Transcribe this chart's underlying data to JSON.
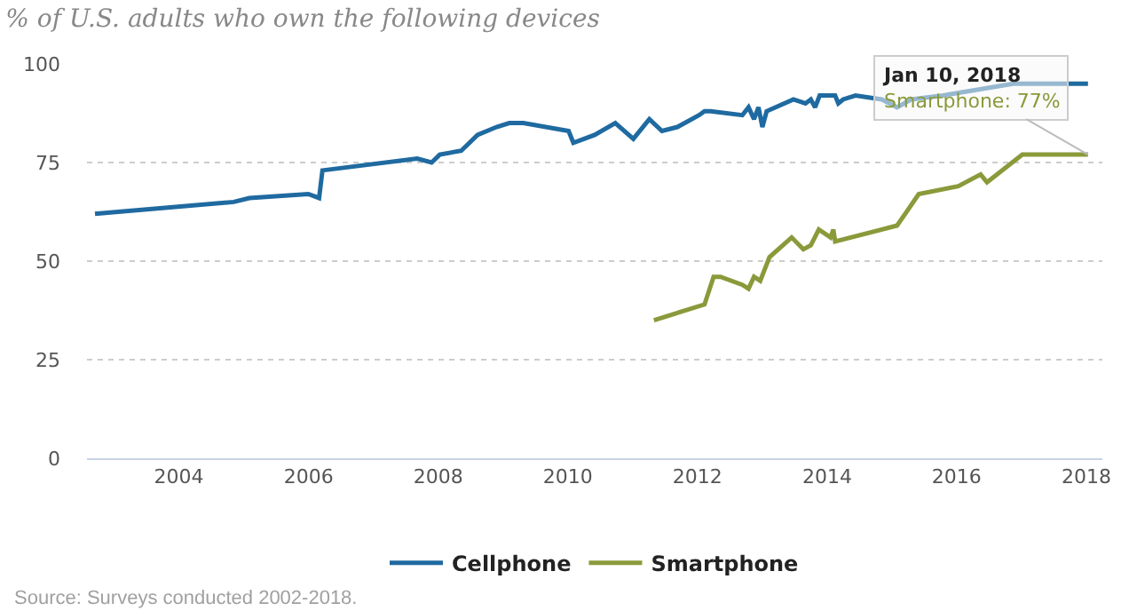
{
  "chart_data": {
    "type": "line",
    "title": "% of U.S. adults who own the following devices",
    "x": [
      "2002-09-15",
      "2004-11-05",
      "2005-02-01",
      "2005-12-30",
      "2006-03-01",
      "2006-03-20",
      "2007-09-05",
      "2007-11-25",
      "2008-01-10",
      "2008-05-10",
      "2008-08-10",
      "2008-11-25",
      "2009-02-05",
      "2009-04-25",
      "2010-01-05",
      "2010-02-01",
      "2010-06-01",
      "2010-09-25",
      "2011-01-05",
      "2011-04-05",
      "2011-06-15",
      "2011-09-10",
      "2012-01-10",
      "2012-02-10",
      "2012-03-15",
      "2012-09-10",
      "2012-10-15",
      "2012-11-15",
      "2012-12-10",
      "2013-01-01",
      "2013-01-25",
      "2013-06-25",
      "2013-09-01",
      "2013-10-01",
      "2013-10-25",
      "2013-11-20",
      "2014-02-15",
      "2014-03-05",
      "2014-04-01",
      "2014-06-10",
      "2014-11-05",
      "2015-01-30",
      "2015-04-20",
      "2015-10-15",
      "2016-11-15",
      "2018-01-10"
    ],
    "series": [
      {
        "name": "Cellphone",
        "color": "#1f6aa0",
        "values": [
          62,
          65,
          66,
          67,
          66,
          73,
          76,
          75,
          77,
          78,
          82,
          84,
          85,
          85,
          83,
          80,
          82,
          85,
          81,
          86,
          83,
          84,
          87,
          88,
          88,
          87,
          89,
          86,
          89,
          84,
          88,
          91,
          90,
          91,
          89,
          92,
          92,
          90,
          91,
          92,
          91,
          89,
          91,
          92,
          95,
          95
        ]
      },
      {
        "name": "Smartphone",
        "color": "#8a9a3a",
        "x": [
          "2011-05-01",
          "2012-02-10",
          "2012-04-01",
          "2012-05-10",
          "2012-09-10",
          "2012-10-15",
          "2012-11-15",
          "2012-12-20",
          "2013-02-10",
          "2013-06-15",
          "2013-08-20",
          "2013-10-01",
          "2013-11-15",
          "2014-01-20",
          "2014-02-05",
          "2014-02-15",
          "2015-01-30",
          "2015-06-01",
          "2016-01-10",
          "2016-05-15",
          "2016-06-20",
          "2017-01-05",
          "2018-01-10"
        ],
        "values": [
          35,
          39,
          46,
          46,
          44,
          43,
          46,
          45,
          51,
          56,
          53,
          54,
          58,
          56,
          58,
          55,
          59,
          67,
          69,
          72,
          70,
          77,
          77
        ]
      }
    ],
    "xlim": [
      "2002-08-01",
      "2018-04-01"
    ],
    "xticks": [
      "2004",
      "2006",
      "2008",
      "2010",
      "2012",
      "2014",
      "2016",
      "2018"
    ],
    "ylim": [
      0,
      100
    ],
    "yticks": [
      0,
      25,
      50,
      75,
      100
    ],
    "grid": "y",
    "legend": "bottom",
    "marker": "none",
    "line_style": "solid",
    "annotations": [
      {
        "text": "Jan 10, 2018\nSmartphone: 77%",
        "x": "2018-01-10",
        "y": 77
      },
      "Source: Surveys conducted 2002-2018."
    ]
  }
}
